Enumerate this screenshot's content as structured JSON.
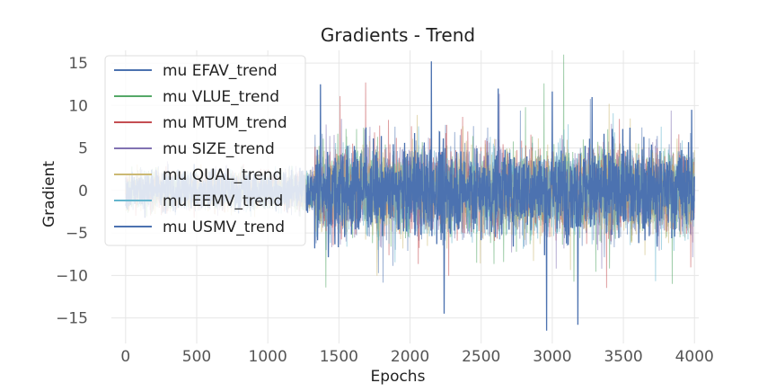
{
  "chart_data": {
    "type": "line",
    "title": "Gradients - Trend",
    "xlabel": "Epochs",
    "ylabel": "Gradient",
    "xlim": [
      -100,
      4030
    ],
    "ylim": [
      -18,
      16.5
    ],
    "xticks": [
      0,
      500,
      1000,
      1500,
      2000,
      2500,
      3000,
      3500,
      4000
    ],
    "xtick_labels": [
      "0",
      "500",
      "1000",
      "1500",
      "2000",
      "2500",
      "3000",
      "3500",
      "4000"
    ],
    "yticks": [
      -15,
      -10,
      -5,
      0,
      5,
      10,
      15
    ],
    "ytick_labels": [
      "−15",
      "−10",
      "−5",
      "0",
      "5",
      "10",
      "15"
    ],
    "grid": true,
    "legend_position": "upper-left",
    "x_range": [
      0,
      4000
    ],
    "notes": "Dense noisy gradient traces, ~4000 epochs; approx. amplitude ±4 before epoch 1300, ~±8–10 after, with spikes reaching about 15.2 and -16.5.",
    "series": [
      {
        "name": "mu EFAV_trend",
        "color": "#4c72b0"
      },
      {
        "name": "mu VLUE_trend",
        "color": "#55a868"
      },
      {
        "name": "mu MTUM_trend",
        "color": "#c44e52"
      },
      {
        "name": "mu SIZE_trend",
        "color": "#8172b2"
      },
      {
        "name": "mu QUAL_trend",
        "color": "#ccb974"
      },
      {
        "name": "mu EEMV_trend",
        "color": "#64b5cd"
      },
      {
        "name": "mu USMV_trend",
        "color": "#4c72b0"
      }
    ],
    "spikes": [
      {
        "x": 1330,
        "y": -6.8
      },
      {
        "x": 1370,
        "y": 12.5
      },
      {
        "x": 2150,
        "y": 15.2
      },
      {
        "x": 2240,
        "y": -14.5
      },
      {
        "x": 2960,
        "y": -16.5
      },
      {
        "x": 3180,
        "y": -15.8
      },
      {
        "x": 3280,
        "y": 11.0
      },
      {
        "x": 2620,
        "y": 12.0
      },
      {
        "x": 3980,
        "y": 9.5
      }
    ]
  }
}
